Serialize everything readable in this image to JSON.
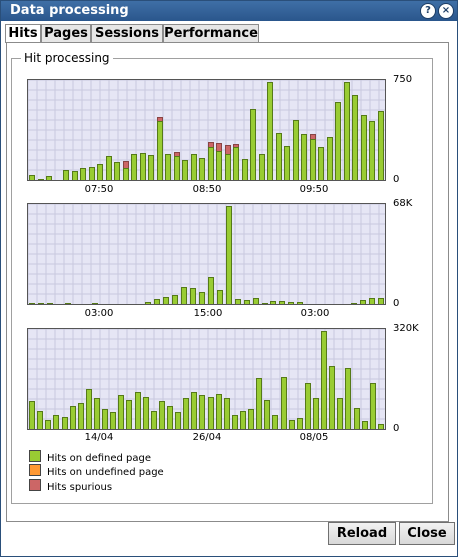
{
  "window": {
    "title": "Data processing"
  },
  "tabs": [
    "Hits",
    "Pages",
    "Sessions",
    "Performance"
  ],
  "group_title": "Hit processing",
  "legend": [
    {
      "label": "Hits on defined page",
      "color": "#99cc33"
    },
    {
      "label": "Hits on undefined page",
      "color": "#ff9933"
    },
    {
      "label": "Hits spurious",
      "color": "#cc6666"
    }
  ],
  "buttons": {
    "reload": "Reload",
    "close": "Close"
  },
  "chart_data": [
    {
      "type": "bar",
      "ylim": [
        0,
        750
      ],
      "y_tick_labels": [
        "750",
        "0"
      ],
      "x_tick_labels": [
        "07:50",
        "08:50",
        "09:50"
      ],
      "series": [
        {
          "name": "Hits on defined page",
          "values": [
            40,
            10,
            30,
            0,
            80,
            70,
            90,
            100,
            120,
            180,
            140,
            90,
            200,
            210,
            190,
            450,
            200,
            180,
            150,
            200,
            170,
            250,
            220,
            200,
            250,
            160,
            540,
            200,
            750,
            360,
            260,
            460,
            350,
            310,
            250,
            330,
            600,
            750,
            650,
            500,
            450,
            530
          ]
        },
        {
          "name": "Hits spurious",
          "values": [
            0,
            0,
            0,
            0,
            0,
            0,
            0,
            0,
            0,
            0,
            0,
            50,
            0,
            0,
            0,
            30,
            0,
            30,
            0,
            0,
            0,
            40,
            60,
            70,
            20,
            0,
            0,
            0,
            0,
            0,
            0,
            0,
            0,
            40,
            0,
            0,
            0,
            0,
            0,
            0,
            0,
            0
          ]
        }
      ]
    },
    {
      "type": "bar",
      "ylim": [
        0,
        68000
      ],
      "y_tick_labels": [
        "68K",
        "0"
      ],
      "x_tick_labels": [
        "03:00",
        "15:00",
        "03:00"
      ],
      "series": [
        {
          "name": "Hits on defined page",
          "values": [
            500,
            1000,
            500,
            0,
            500,
            0,
            0,
            500,
            0,
            0,
            0,
            0,
            0,
            1500,
            3500,
            5000,
            6000,
            12000,
            11000,
            8000,
            19000,
            10000,
            68000,
            3500,
            2500,
            4500,
            1000,
            2000,
            2000,
            1500,
            1500,
            0,
            0,
            0,
            0,
            0,
            1000,
            2500,
            4500,
            4000
          ]
        }
      ]
    },
    {
      "type": "bar",
      "ylim": [
        0,
        320000
      ],
      "y_tick_labels": [
        "320K",
        "0"
      ],
      "x_tick_labels": [
        "14/04",
        "26/04",
        "08/05"
      ],
      "series": [
        {
          "name": "Hits on defined page",
          "values": [
            90000,
            60000,
            30000,
            45000,
            40000,
            75000,
            85000,
            130000,
            100000,
            65000,
            55000,
            110000,
            95000,
            120000,
            105000,
            60000,
            90000,
            75000,
            55000,
            100000,
            120000,
            110000,
            105000,
            115000,
            100000,
            45000,
            60000,
            65000,
            165000,
            95000,
            45000,
            170000,
            30000,
            35000,
            150000,
            100000,
            320000,
            205000,
            100000,
            200000,
            70000,
            25000,
            150000,
            15000
          ]
        }
      ]
    }
  ]
}
